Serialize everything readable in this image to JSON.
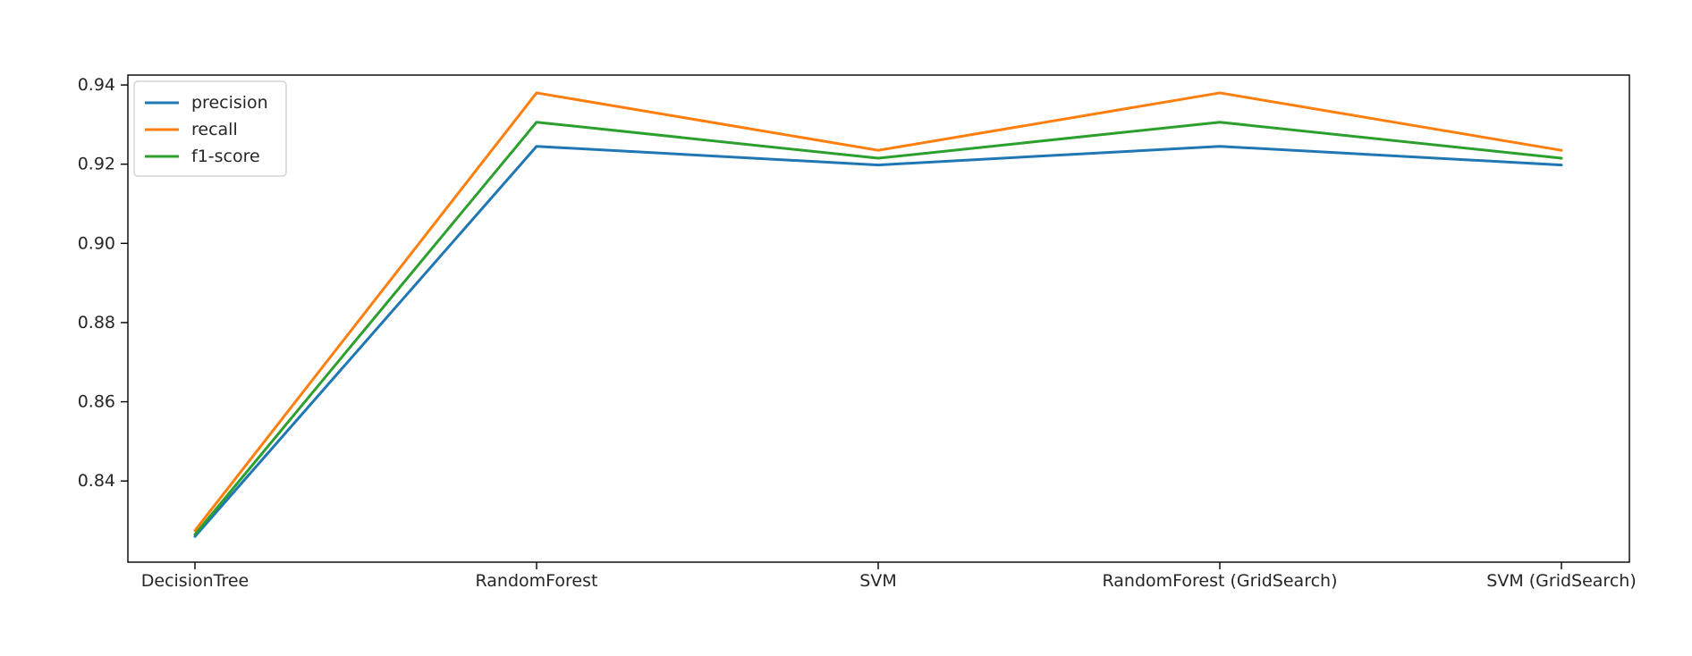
{
  "chart_data": {
    "type": "line",
    "title": "",
    "xlabel": "",
    "ylabel": "",
    "categories": [
      "DecisionTree",
      "RandomForest",
      "SVM",
      "RandomForest (GridSearch)",
      "SVM (GridSearch)"
    ],
    "series": [
      {
        "name": "precision",
        "color": "#1f77b4",
        "values": [
          0.826,
          0.9245,
          0.9198,
          0.9245,
          0.9198
        ]
      },
      {
        "name": "recall",
        "color": "#ff7f0e",
        "values": [
          0.8275,
          0.938,
          0.9235,
          0.938,
          0.9235
        ]
      },
      {
        "name": "f1-score",
        "color": "#2ca02c",
        "values": [
          0.8265,
          0.9306,
          0.9215,
          0.9306,
          0.9215
        ]
      }
    ],
    "ylim": [
      0.8195,
      0.9425
    ],
    "yticks": [
      0.84,
      0.86,
      0.88,
      0.9,
      0.92,
      0.94
    ],
    "ytick_labels": [
      "0.84",
      "0.86",
      "0.88",
      "0.90",
      "0.92",
      "0.94"
    ],
    "grid": false,
    "legend_position": "upper-left"
  }
}
